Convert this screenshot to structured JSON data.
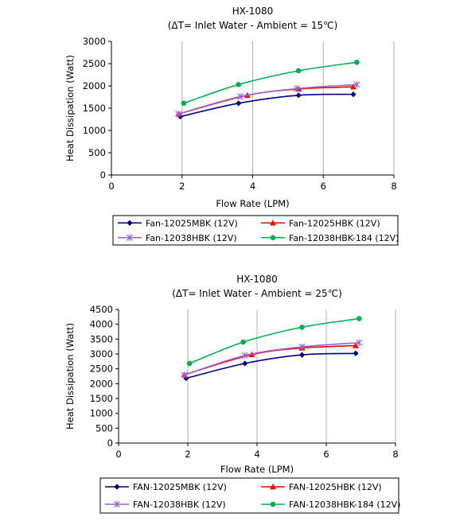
{
  "chart_data": [
    {
      "type": "line",
      "title": "HX-1080",
      "subtitle": "(ΔT= Inlet Water - Ambient = 15℃)",
      "xlabel": "Flow Rate (LPM)",
      "ylabel": "Heat Dissipation (Watt)",
      "xlim": [
        0,
        8
      ],
      "ylim": [
        0,
        3000
      ],
      "xticks": [
        0,
        2,
        4,
        6,
        8
      ],
      "yticks": [
        0,
        500,
        1000,
        1500,
        2000,
        2500,
        3000
      ],
      "grid": "vertical",
      "legend_position": "bottom",
      "series": [
        {
          "name": "Fan-12025MBK (12V)",
          "color": "#000080",
          "marker": "diamond",
          "x": [
            1.95,
            3.6,
            5.3,
            6.85
          ],
          "y": [
            1310,
            1610,
            1790,
            1810
          ]
        },
        {
          "name": "Fan-12025HBK (12V)",
          "color": "#ff0000",
          "marker": "triangle",
          "x": [
            1.9,
            3.85,
            5.3,
            6.85
          ],
          "y": [
            1370,
            1790,
            1930,
            1980
          ]
        },
        {
          "name": "Fan-12038HBK (12V)",
          "color": "#9966cc",
          "marker": "star",
          "x": [
            1.9,
            3.65,
            5.25,
            6.95
          ],
          "y": [
            1370,
            1760,
            1940,
            2030
          ]
        },
        {
          "name": "Fan-12038HBK-184 (12V)",
          "color": "#00b050",
          "marker": "circle",
          "x": [
            2.05,
            3.6,
            5.3,
            6.95
          ],
          "y": [
            1610,
            2030,
            2340,
            2530
          ]
        }
      ]
    },
    {
      "type": "line",
      "title": "HX-1080",
      "subtitle": "(ΔT= Inlet Water - Ambient = 25℃)",
      "xlabel": "Flow Rate (LPM)",
      "ylabel": "Heat Dissipation (Watt)",
      "xlim": [
        0,
        8
      ],
      "ylim": [
        0,
        4500
      ],
      "xticks": [
        0,
        2,
        4,
        6,
        8
      ],
      "yticks": [
        0,
        500,
        1000,
        1500,
        2000,
        2500,
        3000,
        3500,
        4000,
        4500
      ],
      "grid": "vertical",
      "legend_position": "bottom",
      "series": [
        {
          "name": "FAN-12025MBK (12V)",
          "color": "#000080",
          "marker": "diamond",
          "x": [
            1.95,
            3.65,
            5.3,
            6.85
          ],
          "y": [
            2180,
            2680,
            2970,
            3020
          ]
        },
        {
          "name": "FAN-12025HBK (12V)",
          "color": "#ff0000",
          "marker": "triangle",
          "x": [
            1.9,
            3.85,
            5.3,
            6.85
          ],
          "y": [
            2300,
            2980,
            3200,
            3280
          ]
        },
        {
          "name": "FAN-12038HBK (12V)",
          "color": "#9966cc",
          "marker": "star",
          "x": [
            1.9,
            3.65,
            5.3,
            6.95
          ],
          "y": [
            2290,
            2950,
            3240,
            3380
          ]
        },
        {
          "name": "FAN-12038HBK-184 (12V)",
          "color": "#00b050",
          "marker": "circle",
          "x": [
            2.05,
            3.6,
            5.3,
            6.95
          ],
          "y": [
            2680,
            3400,
            3900,
            4190
          ]
        }
      ]
    }
  ]
}
